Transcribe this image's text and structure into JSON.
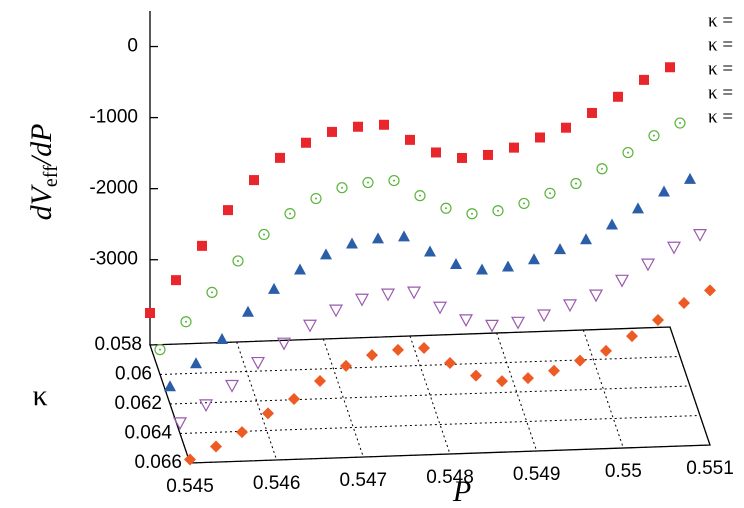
{
  "chart_data": {
    "type": "scatter3d",
    "zlabel_main": "dV",
    "zlabel_sub": "eff",
    "zlabel_tail": "/dP",
    "xlabel": "P",
    "klabel": "κ",
    "x": [
      0.545,
      0.5453,
      0.5456,
      0.5459,
      0.5462,
      0.5465,
      0.5468,
      0.5471,
      0.5474,
      0.5477,
      0.548,
      0.5483,
      0.5486,
      0.5489,
      0.5492,
      0.5495,
      0.5498,
      0.5501,
      0.5504,
      0.5507,
      0.551
    ],
    "xlim": [
      0.545,
      0.551
    ],
    "xticks": [
      0.545,
      0.546,
      0.547,
      0.548,
      0.549,
      0.55,
      0.551
    ],
    "klim": [
      0.058,
      0.066
    ],
    "kticks": [
      0.058,
      0.06,
      0.062,
      0.064,
      0.066
    ],
    "zlim": [
      -4200,
      500
    ],
    "zticks": [
      0,
      -1000,
      -2000,
      -3000
    ],
    "series": [
      {
        "name": "κ =",
        "kappa": 0.058,
        "color": "#e8262b",
        "marker": "square",
        "values": [
          -3750,
          -3300,
          -2830,
          -2340,
          -1930,
          -1630,
          -1430,
          -1290,
          -1230,
          -1215,
          -1440,
          -1630,
          -1720,
          -1690,
          -1600,
          -1470,
          -1345,
          -1150,
          -935,
          -710,
          -545
        ]
      },
      {
        "name": "κ =",
        "kappa": 0.06,
        "color": "#5ab43c",
        "marker": "dotcircle",
        "values": [
          -3850,
          -3470,
          -3070,
          -2640,
          -2280,
          -2000,
          -1800,
          -1660,
          -1600,
          -1585,
          -1810,
          -2000,
          -2090,
          -2060,
          -1970,
          -1840,
          -1715,
          -1520,
          -1305,
          -1080,
          -915
        ]
      },
      {
        "name": "κ =",
        "kappa": 0.062,
        "color": "#2a5ea8",
        "marker": "triangle",
        "values": [
          -3950,
          -3640,
          -3310,
          -2940,
          -2630,
          -2370,
          -2170,
          -2030,
          -1970,
          -1955,
          -2180,
          -2370,
          -2460,
          -2430,
          -2340,
          -2210,
          -2085,
          -1890,
          -1675,
          -1450,
          -1285
        ]
      },
      {
        "name": "κ =",
        "kappa": 0.064,
        "color": "#9b59b0",
        "marker": "opentriangledown",
        "values": [
          -4050,
          -3810,
          -3550,
          -3240,
          -2980,
          -2740,
          -2540,
          -2400,
          -2340,
          -2325,
          -2550,
          -2740,
          -2830,
          -2800,
          -2710,
          -2580,
          -2455,
          -2260,
          -2045,
          -1820,
          -1655
        ]
      },
      {
        "name": "κ =",
        "kappa": 0.066,
        "color": "#ee5a24",
        "marker": "diamond",
        "values": [
          -4150,
          -3980,
          -3790,
          -3540,
          -3350,
          -3110,
          -2910,
          -2770,
          -2710,
          -2695,
          -2920,
          -3110,
          -3200,
          -3170,
          -3080,
          -2950,
          -2825,
          -2630,
          -2415,
          -2190,
          -2025
        ]
      }
    ]
  }
}
